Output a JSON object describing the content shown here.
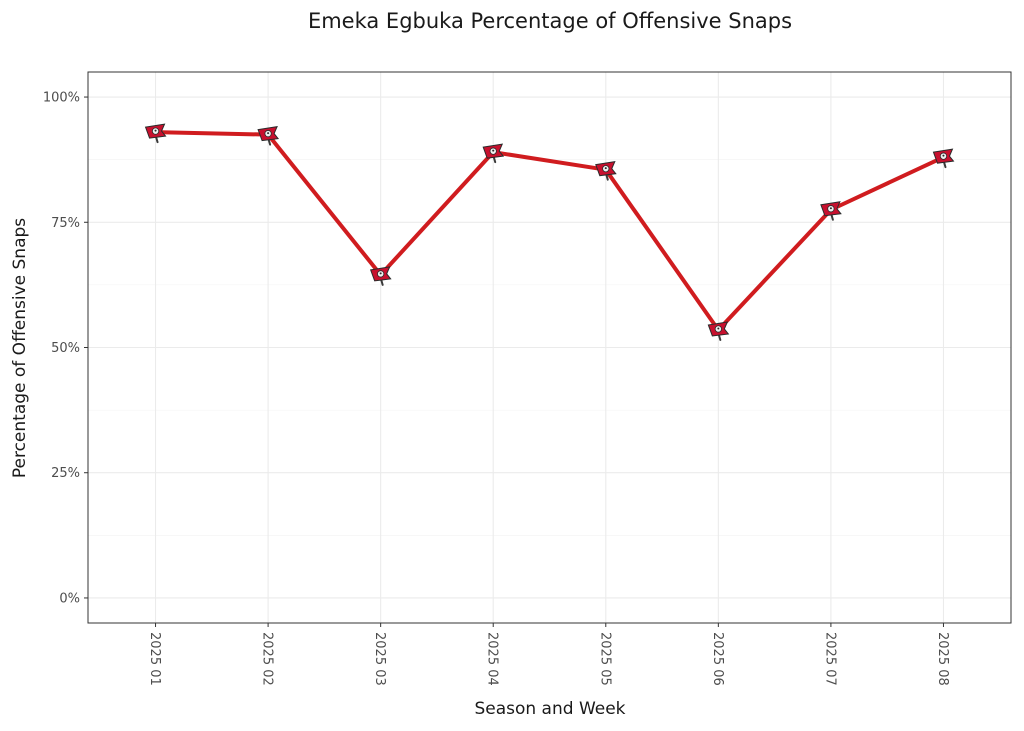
{
  "chart_data": {
    "type": "line",
    "title": "Emeka Egbuka Percentage of Offensive Snaps",
    "xlabel": "Season and Week",
    "ylabel": "Percentage of Offensive Snaps",
    "categories": [
      "2025 01",
      "2025 02",
      "2025 03",
      "2025 04",
      "2025 05",
      "2025 06",
      "2025 07",
      "2025 08"
    ],
    "series": [
      {
        "values": [
          93,
          92.5,
          64.5,
          89,
          85.5,
          53.5,
          77.5,
          88
        ],
        "color": "#d01c1f",
        "marker_icon": "buccaneers-flag-icon"
      }
    ],
    "ylim": [
      -5,
      105
    ],
    "yticks": [
      0,
      25,
      50,
      75,
      100
    ],
    "ytick_labels": [
      "0%",
      "25%",
      "50%",
      "75%",
      "100%"
    ],
    "grid": true,
    "legend": "none"
  }
}
